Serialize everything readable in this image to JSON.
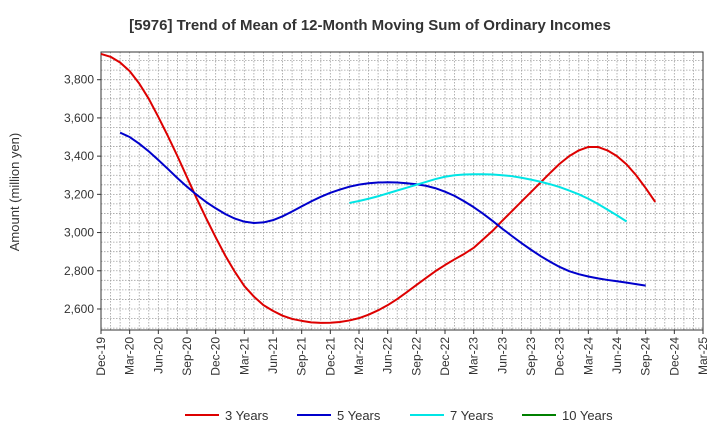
{
  "chart_data": {
    "type": "line",
    "title": "[5976]  Trend of Mean of 12-Month Moving Sum of Ordinary Incomes",
    "xlabel": "",
    "ylabel": "Amount (million yen)",
    "ylim": [
      2490,
      3945
    ],
    "yticks": [
      2600,
      2800,
      3000,
      3200,
      3400,
      3600,
      3800
    ],
    "ytick_labels": [
      "2,600",
      "2,800",
      "3,000",
      "3,200",
      "3,400",
      "3,600",
      "3,800"
    ],
    "xticks": [
      "Dec-19",
      "Mar-20",
      "Jun-20",
      "Sep-20",
      "Dec-20",
      "Mar-21",
      "Jun-21",
      "Sep-21",
      "Dec-21",
      "Mar-22",
      "Jun-22",
      "Sep-22",
      "Dec-22",
      "Mar-23",
      "Jun-23",
      "Sep-23",
      "Dec-23",
      "Mar-24",
      "Jun-24",
      "Sep-24",
      "Dec-24",
      "Mar-25"
    ],
    "grid": true,
    "series": [
      {
        "name": "3 Years",
        "color": "#dd0000",
        "start_index": 0,
        "values": [
          3935,
          3920,
          3890,
          3845,
          3780,
          3700,
          3605,
          3505,
          3400,
          3290,
          3180,
          3075,
          2975,
          2880,
          2795,
          2720,
          2665,
          2620,
          2590,
          2565,
          2548,
          2538,
          2530,
          2527,
          2528,
          2532,
          2540,
          2552,
          2570,
          2593,
          2620,
          2652,
          2688,
          2725,
          2762,
          2798,
          2830,
          2860,
          2888,
          2920,
          2965,
          3010,
          3062,
          3112,
          3162,
          3212,
          3262,
          3312,
          3360,
          3400,
          3430,
          3448,
          3448,
          3430,
          3400,
          3357,
          3300,
          3233,
          3160
        ]
      },
      {
        "name": "5 Years",
        "color": "#0000cc",
        "start_index": 2,
        "values": [
          3523,
          3500,
          3465,
          3425,
          3380,
          3333,
          3285,
          3240,
          3198,
          3160,
          3127,
          3097,
          3073,
          3057,
          3050,
          3053,
          3065,
          3085,
          3110,
          3137,
          3163,
          3187,
          3208,
          3225,
          3240,
          3251,
          3258,
          3262,
          3263,
          3262,
          3258,
          3253,
          3245,
          3232,
          3214,
          3192,
          3164,
          3133,
          3098,
          3060,
          3020,
          2982,
          2945,
          2910,
          2877,
          2847,
          2820,
          2798,
          2782,
          2770,
          2760,
          2752,
          2745,
          2738,
          2730,
          2722
        ]
      },
      {
        "name": "7 Years",
        "color": "#00e5e5",
        "start_index": 26,
        "values": [
          3155,
          3165,
          3177,
          3190,
          3205,
          3220,
          3235,
          3250,
          3265,
          3280,
          3292,
          3300,
          3304,
          3305,
          3305,
          3304,
          3300,
          3295,
          3287,
          3277,
          3266,
          3253,
          3238,
          3220,
          3200,
          3177,
          3150,
          3120,
          3090,
          3058
        ]
      },
      {
        "name": "10 Years",
        "color": "#008000",
        "start_index": 0,
        "values": []
      }
    ],
    "legend_position": "bottom"
  }
}
